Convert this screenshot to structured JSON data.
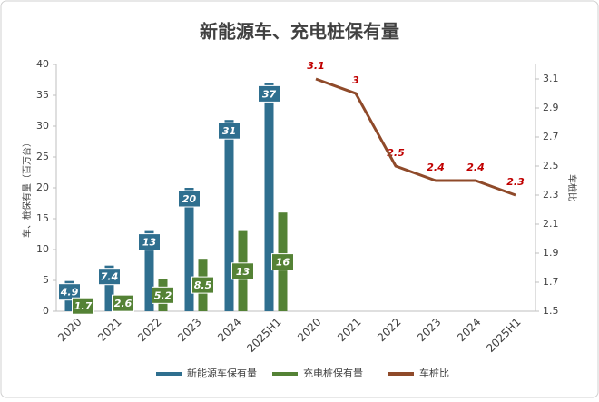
{
  "chart_data": {
    "type": "combo",
    "title": "新能源车、充电桩保有量",
    "categories": [
      "2020",
      "2021",
      "2022",
      "2023",
      "2024",
      "2025H1",
      "2020",
      "2021",
      "2022",
      "2023",
      "2024",
      "2025H1"
    ],
    "ylabel": "车、桩保有量（百万台）",
    "y2label": "车桩比",
    "ylim": [
      0,
      40
    ],
    "yticks": [
      0,
      5,
      10,
      15,
      20,
      25,
      30,
      35,
      40
    ],
    "y2lim": [
      1.5,
      3.2
    ],
    "y2ticks": [
      1.5,
      1.7,
      1.9,
      2.1,
      2.3,
      2.5,
      2.7,
      2.9,
      3.1
    ],
    "series": [
      {
        "name": "新能源车保有量",
        "type": "bar",
        "color": "#2f6f8f",
        "values": [
          4.9,
          7.4,
          13,
          20,
          31,
          37,
          null,
          null,
          null,
          null,
          null,
          null
        ]
      },
      {
        "name": "充电桩保有量",
        "type": "bar",
        "color": "#548235",
        "values": [
          1.7,
          2.6,
          5.2,
          8.5,
          13,
          16,
          null,
          null,
          null,
          null,
          null,
          null
        ]
      },
      {
        "name": "车桩比",
        "type": "line",
        "axis": "y2",
        "color": "#8f4a2a",
        "values": [
          null,
          null,
          null,
          null,
          null,
          null,
          3.1,
          3,
          2.5,
          2.4,
          2.4,
          2.3
        ]
      }
    ]
  }
}
